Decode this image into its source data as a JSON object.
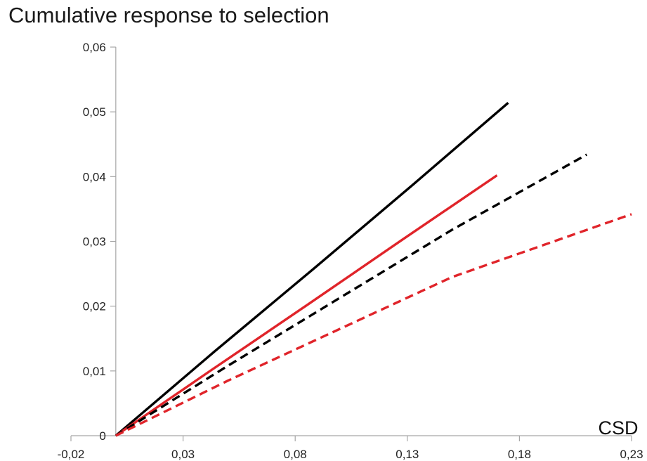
{
  "chart_data": {
    "type": "line",
    "title": "Cumulative response to selection",
    "xlabel": "CSD",
    "ylabel": "",
    "xlim": [
      -0.02,
      0.23
    ],
    "ylim": [
      0,
      0.06
    ],
    "x_ticks": [
      {
        "value": -0.02,
        "label": "-0,02"
      },
      {
        "value": 0.03,
        "label": "0,03"
      },
      {
        "value": 0.08,
        "label": "0,08"
      },
      {
        "value": 0.13,
        "label": "0,13"
      },
      {
        "value": 0.18,
        "label": "0,18"
      },
      {
        "value": 0.23,
        "label": "0,23"
      }
    ],
    "y_ticks": [
      {
        "value": 0,
        "label": "0"
      },
      {
        "value": 0.01,
        "label": "0,01"
      },
      {
        "value": 0.02,
        "label": "0,02"
      },
      {
        "value": 0.03,
        "label": "0,03"
      },
      {
        "value": 0.04,
        "label": "0,04"
      },
      {
        "value": 0.05,
        "label": "0,05"
      },
      {
        "value": 0.06,
        "label": "0,06"
      }
    ],
    "grid": false,
    "legend": "none",
    "series": [
      {
        "color": "#000000",
        "dash": "solid",
        "points": [
          [
            0,
            0
          ],
          [
            0.044,
            0.013
          ],
          [
            0.088,
            0.0257
          ],
          [
            0.132,
            0.0386
          ],
          [
            0.175,
            0.0514
          ]
        ]
      },
      {
        "color": "#e0242a",
        "dash": "solid",
        "points": [
          [
            0,
            0
          ],
          [
            0.0425,
            0.0101
          ],
          [
            0.085,
            0.0201
          ],
          [
            0.1275,
            0.0302
          ],
          [
            0.17,
            0.0402
          ]
        ]
      },
      {
        "color": "#000000",
        "dash": "dashed",
        "points": [
          [
            0,
            0
          ],
          [
            0.05,
            0.0108
          ],
          [
            0.1,
            0.0213
          ],
          [
            0.15,
            0.0318
          ],
          [
            0.21,
            0.0434
          ]
        ]
      },
      {
        "color": "#e0242a",
        "dash": "dashed",
        "points": [
          [
            0,
            0
          ],
          [
            0.05,
            0.0085
          ],
          [
            0.1,
            0.0165
          ],
          [
            0.15,
            0.0245
          ],
          [
            0.23,
            0.0342
          ]
        ]
      }
    ]
  }
}
